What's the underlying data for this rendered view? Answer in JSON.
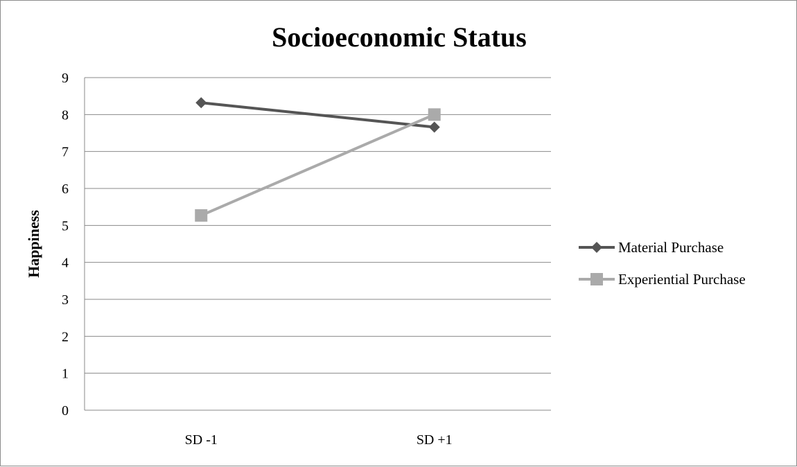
{
  "chart_data": {
    "type": "line",
    "title": "Socioeconomic Status",
    "xlabel": "",
    "ylabel": "Happiness",
    "categories": [
      "SD -1",
      "SD +1"
    ],
    "ylim": [
      0,
      9
    ],
    "yticks": [
      "0",
      "1",
      "2",
      "3",
      "4",
      "5",
      "6",
      "7",
      "8",
      "9"
    ],
    "grid": true,
    "legend_position": "right",
    "series": [
      {
        "name": "Material Purchase",
        "values": [
          8.32,
          7.66
        ],
        "color": "#555555",
        "marker": "diamond"
      },
      {
        "name": "Experiential Purchase",
        "values": [
          5.27,
          8.0
        ],
        "color": "#aaaaaa",
        "marker": "square"
      }
    ]
  }
}
